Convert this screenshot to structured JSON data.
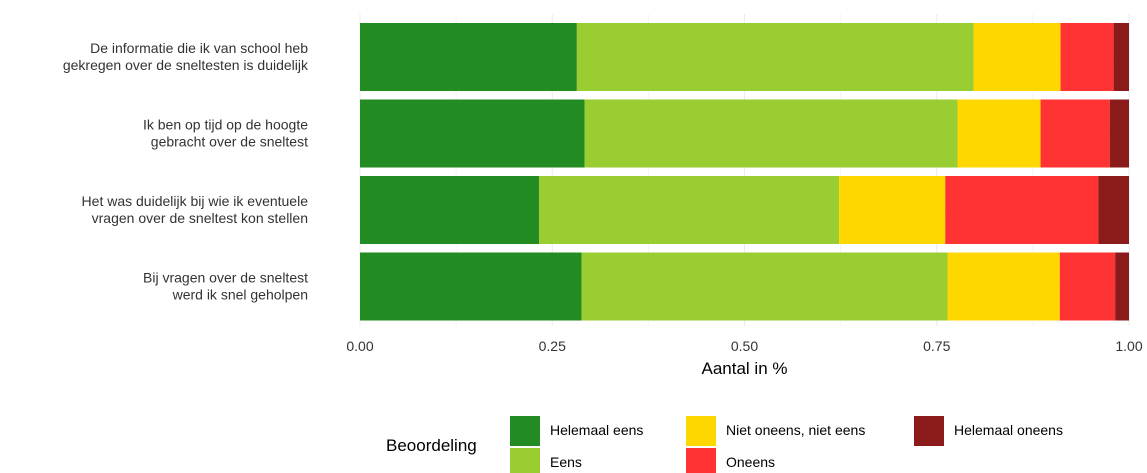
{
  "chart_data": {
    "type": "bar",
    "orientation": "horizontal",
    "stacked": true,
    "categories": [
      [
        "De informatie die ik van school heb",
        "gekregen over de sneltesten is duidelijk"
      ],
      [
        "Ik ben op tijd op de hoogte",
        "gebracht over de sneltest"
      ],
      [
        "Het was duidelijk bij wie ik eventuele",
        "vragen over de sneltest kon stellen"
      ],
      [
        "Bij vragen over de sneltest",
        "werd ik snel geholpen"
      ]
    ],
    "series": [
      {
        "name": "Helemaal eens",
        "color": "#228B22",
        "values": [
          0.282,
          0.292,
          0.233,
          0.288
        ]
      },
      {
        "name": "Eens",
        "color": "#9ACD32",
        "values": [
          0.516,
          0.485,
          0.39,
          0.476
        ]
      },
      {
        "name": "Niet oneens, niet eens",
        "color": "#FFD700",
        "values": [
          0.113,
          0.108,
          0.138,
          0.146
        ]
      },
      {
        "name": "Oneens",
        "color": "#FF3333",
        "values": [
          0.069,
          0.09,
          0.199,
          0.072
        ]
      },
      {
        "name": "Helemaal oneens",
        "color": "#8B1A1A",
        "values": [
          0.02,
          0.025,
          0.04,
          0.018
        ]
      }
    ],
    "xlim": [
      0,
      1
    ],
    "xticks": [
      0,
      0.25,
      0.5,
      0.75,
      1.0
    ],
    "xtick_labels": [
      "0.00",
      "0.25",
      "0.50",
      "0.75",
      "1.00"
    ],
    "xlabel": "Aantal in %",
    "ylabel": "",
    "grid": true,
    "legend_title": "Beoordeling",
    "legend_position": "bottom"
  }
}
